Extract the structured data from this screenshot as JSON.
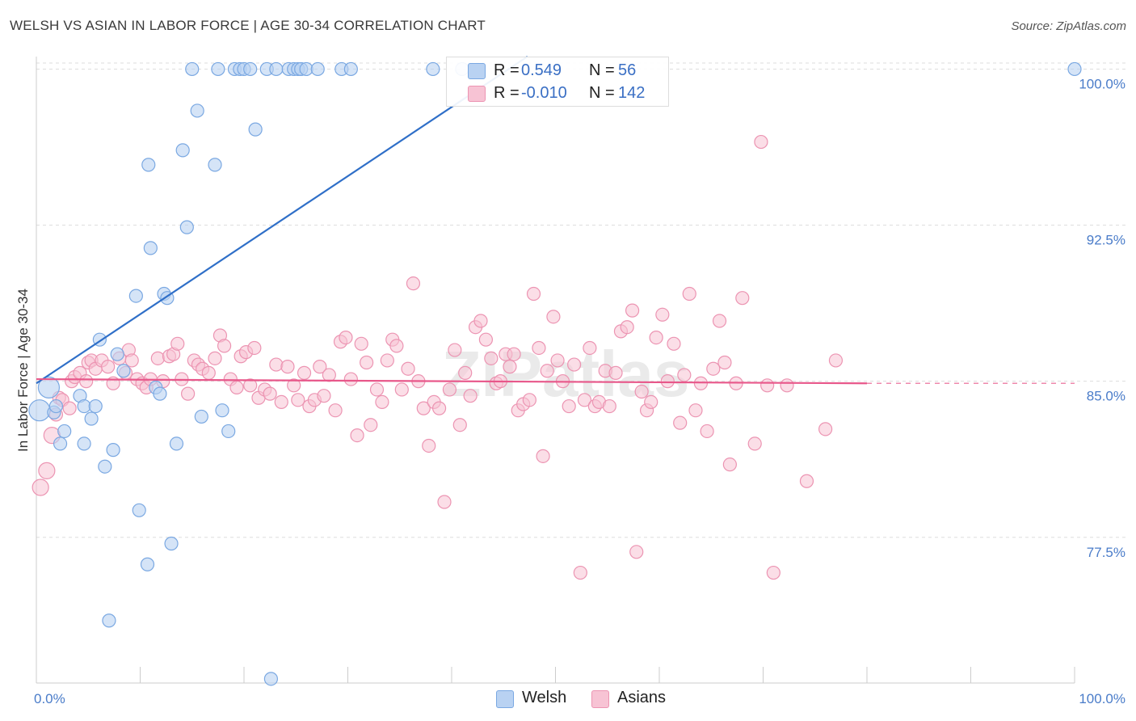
{
  "title": "WELSH VS ASIAN IN LABOR FORCE | AGE 30-34 CORRELATION CHART",
  "source": "Source: ZipAtlas.com",
  "watermark": "ZIPatlas",
  "legend": {
    "welsh": {
      "r_label": "R =",
      "r_value": "0.549",
      "n_label": "N =",
      "n_value": "56"
    },
    "asians": {
      "r_label": "R =",
      "r_value": "-0.010",
      "n_label": "N =",
      "n_value": "142"
    }
  },
  "bottom_legend": {
    "welsh": "Welsh",
    "asians": "Asians"
  },
  "colors": {
    "welsh_fill": "#b9d2f2",
    "welsh_stroke": "#7aa8e2",
    "welsh_line": "#2f6fc8",
    "asians_fill": "#f7c3d4",
    "asians_stroke": "#ec94b2",
    "asians_line": "#e8578a",
    "grid": "#dddddd",
    "tick_label": "#4a7cc9"
  },
  "chart_data": {
    "type": "scatter",
    "title": "WELSH VS ASIAN IN LABOR FORCE | AGE 30-34 CORRELATION CHART",
    "xlabel": "",
    "ylabel": "In Labor Force | Age 30-34",
    "xlim": [
      0,
      100
    ],
    "ylim": [
      70.5,
      100.6
    ],
    "x_tick_labels": [
      "0.0%",
      "100.0%"
    ],
    "y_ticks": [
      77.5,
      85.0,
      92.5,
      100.0
    ],
    "y_tick_labels": [
      "77.5%",
      "85.0%",
      "92.5%",
      "100.0%"
    ],
    "grid": true,
    "legend_position": "top-center",
    "series": [
      {
        "name": "Welsh",
        "r": 0.549,
        "n": 56,
        "trend": {
          "x": [
            0,
            47.3
          ],
          "y": [
            84.9,
            100.6
          ]
        },
        "points": [
          [
            0.3,
            83.6
          ],
          [
            1.2,
            84.7
          ],
          [
            1.7,
            83.5
          ],
          [
            1.9,
            83.8
          ],
          [
            2.3,
            82.0
          ],
          [
            2.7,
            82.6
          ],
          [
            4.2,
            84.3
          ],
          [
            4.6,
            83.8
          ],
          [
            4.6,
            82.0
          ],
          [
            5.3,
            83.2
          ],
          [
            5.7,
            83.8
          ],
          [
            6.1,
            87.0
          ],
          [
            6.6,
            80.9
          ],
          [
            7.0,
            73.5
          ],
          [
            7.4,
            81.7
          ],
          [
            7.8,
            86.3
          ],
          [
            8.4,
            85.5
          ],
          [
            9.6,
            89.1
          ],
          [
            9.9,
            78.8
          ],
          [
            10.7,
            76.2
          ],
          [
            10.8,
            95.4
          ],
          [
            11.0,
            91.4
          ],
          [
            11.5,
            84.7
          ],
          [
            11.9,
            84.4
          ],
          [
            12.3,
            89.2
          ],
          [
            12.6,
            89.0
          ],
          [
            13.0,
            77.2
          ],
          [
            13.5,
            82.0
          ],
          [
            14.1,
            96.1
          ],
          [
            14.5,
            92.4
          ],
          [
            15.0,
            100.0
          ],
          [
            15.5,
            98.0
          ],
          [
            15.9,
            83.3
          ],
          [
            17.2,
            95.4
          ],
          [
            17.5,
            100.0
          ],
          [
            17.9,
            83.6
          ],
          [
            18.5,
            82.6
          ],
          [
            19.1,
            100.0
          ],
          [
            19.6,
            100.0
          ],
          [
            20.0,
            100.0
          ],
          [
            20.6,
            100.0
          ],
          [
            21.1,
            97.1
          ],
          [
            22.2,
            100.0
          ],
          [
            22.6,
            70.7
          ],
          [
            23.1,
            100.0
          ],
          [
            24.3,
            100.0
          ],
          [
            24.8,
            100.0
          ],
          [
            25.2,
            100.0
          ],
          [
            25.5,
            100.0
          ],
          [
            26.0,
            100.0
          ],
          [
            27.1,
            100.0
          ],
          [
            29.4,
            100.0
          ],
          [
            30.3,
            100.0
          ],
          [
            38.2,
            100.0
          ],
          [
            41.0,
            100.0
          ],
          [
            100.0,
            100.0
          ]
        ]
      },
      {
        "name": "Asians",
        "r": -0.01,
        "n": 142,
        "trend_solid": {
          "x": [
            0,
            80
          ],
          "y": [
            85.1,
            84.9
          ]
        },
        "trend_dashed": {
          "x": [
            80,
            100
          ],
          "y": [
            84.9,
            84.9
          ]
        },
        "points": [
          [
            0.4,
            79.9
          ],
          [
            1.0,
            80.7
          ],
          [
            1.5,
            82.4
          ],
          [
            1.9,
            83.4
          ],
          [
            2.2,
            84.2
          ],
          [
            2.5,
            84.1
          ],
          [
            3.2,
            83.7
          ],
          [
            3.4,
            85.0
          ],
          [
            3.7,
            85.2
          ],
          [
            4.2,
            85.4
          ],
          [
            4.8,
            85.0
          ],
          [
            5.0,
            85.9
          ],
          [
            5.3,
            86.0
          ],
          [
            5.7,
            85.6
          ],
          [
            6.3,
            86.0
          ],
          [
            6.9,
            85.7
          ],
          [
            7.4,
            84.9
          ],
          [
            8.0,
            86.1
          ],
          [
            8.6,
            85.4
          ],
          [
            8.9,
            86.5
          ],
          [
            9.2,
            86.0
          ],
          [
            9.7,
            85.1
          ],
          [
            10.2,
            84.9
          ],
          [
            10.6,
            84.7
          ],
          [
            11.0,
            85.1
          ],
          [
            11.7,
            86.1
          ],
          [
            12.2,
            85.0
          ],
          [
            12.8,
            86.2
          ],
          [
            13.2,
            86.3
          ],
          [
            13.6,
            86.8
          ],
          [
            14.0,
            85.1
          ],
          [
            14.6,
            84.4
          ],
          [
            15.2,
            86.0
          ],
          [
            15.6,
            85.8
          ],
          [
            16.0,
            85.6
          ],
          [
            16.6,
            85.4
          ],
          [
            17.2,
            86.1
          ],
          [
            17.7,
            87.2
          ],
          [
            18.1,
            86.7
          ],
          [
            18.7,
            85.1
          ],
          [
            19.3,
            84.7
          ],
          [
            19.7,
            86.2
          ],
          [
            20.2,
            86.4
          ],
          [
            20.6,
            84.8
          ],
          [
            21.0,
            86.6
          ],
          [
            21.4,
            84.2
          ],
          [
            22.0,
            84.6
          ],
          [
            22.5,
            84.4
          ],
          [
            23.1,
            85.8
          ],
          [
            23.6,
            84.0
          ],
          [
            24.2,
            85.7
          ],
          [
            24.8,
            84.8
          ],
          [
            25.2,
            84.1
          ],
          [
            25.8,
            85.4
          ],
          [
            26.3,
            83.8
          ],
          [
            26.8,
            84.1
          ],
          [
            27.3,
            85.7
          ],
          [
            27.7,
            84.3
          ],
          [
            28.2,
            85.3
          ],
          [
            28.8,
            83.6
          ],
          [
            29.3,
            86.9
          ],
          [
            29.8,
            87.1
          ],
          [
            30.3,
            85.1
          ],
          [
            30.9,
            82.4
          ],
          [
            31.3,
            86.8
          ],
          [
            31.8,
            85.9
          ],
          [
            32.2,
            82.9
          ],
          [
            32.8,
            84.6
          ],
          [
            33.3,
            84.0
          ],
          [
            33.8,
            86.0
          ],
          [
            34.3,
            87.0
          ],
          [
            34.7,
            86.7
          ],
          [
            35.2,
            84.6
          ],
          [
            35.8,
            85.6
          ],
          [
            36.3,
            89.7
          ],
          [
            36.8,
            85.0
          ],
          [
            37.3,
            83.7
          ],
          [
            37.8,
            81.9
          ],
          [
            38.3,
            84.0
          ],
          [
            38.8,
            83.7
          ],
          [
            39.3,
            79.2
          ],
          [
            39.8,
            84.6
          ],
          [
            40.3,
            86.5
          ],
          [
            40.8,
            82.9
          ],
          [
            41.3,
            85.4
          ],
          [
            41.8,
            84.3
          ],
          [
            42.3,
            87.6
          ],
          [
            42.8,
            87.9
          ],
          [
            43.3,
            87.0
          ],
          [
            43.8,
            86.1
          ],
          [
            44.3,
            84.9
          ],
          [
            44.7,
            85.0
          ],
          [
            45.2,
            86.3
          ],
          [
            45.6,
            85.7
          ],
          [
            46.0,
            86.3
          ],
          [
            46.4,
            83.6
          ],
          [
            46.9,
            83.9
          ],
          [
            47.5,
            84.1
          ],
          [
            47.9,
            89.2
          ],
          [
            48.4,
            86.6
          ],
          [
            48.8,
            81.4
          ],
          [
            49.2,
            85.5
          ],
          [
            49.8,
            88.1
          ],
          [
            50.2,
            86.0
          ],
          [
            50.7,
            85.0
          ],
          [
            51.3,
            83.8
          ],
          [
            51.8,
            85.8
          ],
          [
            52.4,
            75.8
          ],
          [
            52.8,
            84.1
          ],
          [
            53.3,
            86.6
          ],
          [
            53.8,
            83.8
          ],
          [
            54.2,
            84.0
          ],
          [
            54.8,
            85.5
          ],
          [
            55.2,
            83.8
          ],
          [
            55.8,
            85.4
          ],
          [
            56.3,
            87.4
          ],
          [
            56.9,
            87.6
          ],
          [
            57.4,
            88.4
          ],
          [
            57.8,
            76.8
          ],
          [
            58.3,
            84.5
          ],
          [
            58.8,
            83.6
          ],
          [
            59.2,
            84.0
          ],
          [
            59.7,
            87.1
          ],
          [
            60.3,
            88.2
          ],
          [
            60.8,
            85.0
          ],
          [
            61.4,
            86.8
          ],
          [
            62.0,
            83.0
          ],
          [
            62.4,
            85.3
          ],
          [
            62.9,
            89.2
          ],
          [
            63.5,
            83.6
          ],
          [
            64.0,
            84.9
          ],
          [
            64.6,
            82.6
          ],
          [
            65.2,
            85.6
          ],
          [
            65.8,
            87.9
          ],
          [
            66.3,
            85.9
          ],
          [
            66.8,
            81.0
          ],
          [
            67.4,
            84.9
          ],
          [
            68.0,
            89.0
          ],
          [
            69.2,
            82.0
          ],
          [
            69.8,
            96.5
          ],
          [
            70.4,
            84.8
          ],
          [
            71.0,
            75.8
          ],
          [
            72.3,
            84.8
          ],
          [
            74.2,
            80.2
          ],
          [
            76.0,
            82.7
          ],
          [
            77.0,
            86.0
          ]
        ]
      }
    ]
  }
}
